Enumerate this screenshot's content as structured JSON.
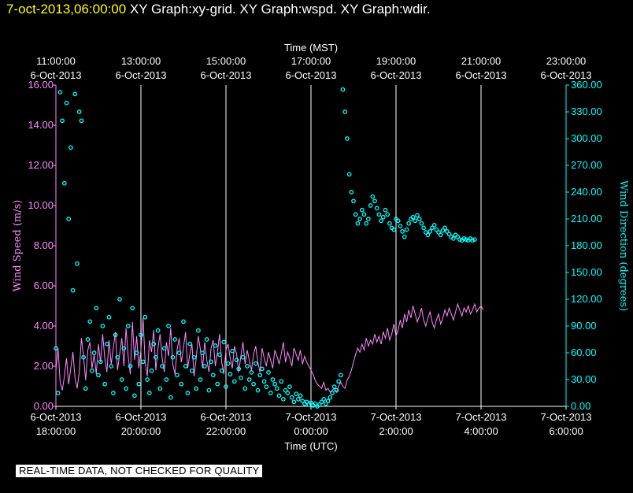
{
  "header": {
    "date": "7-oct-2013,06:00:00",
    "graphs": "  XY Graph:xy-grid.  XY Graph:wspd.  XY Graph:wdir."
  },
  "footer": {
    "disclaimer": "REAL-TIME DATA, NOT CHECKED FOR QUALITY"
  },
  "colors": {
    "background": "#000000",
    "wspd": "#ff88ff",
    "wdir": "#00ffff",
    "grid": "#ffffff",
    "title_date": "#ffff00"
  },
  "chart_data": {
    "type": "line",
    "top_axis": {
      "label": "Time (MST)",
      "ticks": [
        {
          "t": 0,
          "time": "11:00:00",
          "date": "6-Oct-2013"
        },
        {
          "t": 2,
          "time": "13:00:00",
          "date": "6-Oct-2013"
        },
        {
          "t": 4,
          "time": "15:00:00",
          "date": "6-Oct-2013"
        },
        {
          "t": 6,
          "time": "17:00:00",
          "date": "6-Oct-2013"
        },
        {
          "t": 8,
          "time": "19:00:00",
          "date": "6-Oct-2013"
        },
        {
          "t": 10,
          "time": "21:00:00",
          "date": "6-Oct-2013"
        },
        {
          "t": 12,
          "time": "23:00:00",
          "date": "6-Oct-2013"
        }
      ]
    },
    "bottom_axis": {
      "label": "Time (UTC)",
      "ticks": [
        {
          "t": 0,
          "date": "6-Oct-2013",
          "time": "18:00:00"
        },
        {
          "t": 2,
          "date": "6-Oct-2013",
          "time": "20:00:00"
        },
        {
          "t": 4,
          "date": "6-Oct-2013",
          "time": "22:00:00"
        },
        {
          "t": 6,
          "date": "7-Oct-2013",
          "time": "0:00:00"
        },
        {
          "t": 8,
          "date": "7-Oct-2013",
          "time": "2:00:00"
        },
        {
          "t": 10,
          "date": "7-Oct-2013",
          "time": "4:00:00"
        },
        {
          "t": 12,
          "date": "7-Oct-2013",
          "time": "6:00:00"
        }
      ]
    },
    "x_range_hours": [
      0,
      12
    ],
    "vertical_grid_hours": [
      2,
      4,
      6,
      8,
      10,
      12
    ],
    "left_axis": {
      "label": "Wind Speed (m/s)",
      "range": [
        0,
        16
      ],
      "ticks": [
        "0.00",
        "2.00",
        "4.00",
        "6.00",
        "8.00",
        "10.00",
        "12.00",
        "14.00",
        "16.00"
      ]
    },
    "right_axis": {
      "label": "Wind Direction (degrees)",
      "range": [
        0,
        360
      ],
      "ticks": [
        "0.00",
        "30.00",
        "60.00",
        "90.00",
        "120.00",
        "150.00",
        "180.00",
        "210.00",
        "240.00",
        "270.00",
        "300.00",
        "330.00",
        "360.00"
      ]
    },
    "series": [
      {
        "name": "wspd",
        "units": "m/s",
        "step_hours": 0.05,
        "values": [
          1.8,
          2.9,
          1.2,
          0.8,
          1.5,
          2.4,
          1.1,
          1.9,
          2.7,
          1.4,
          0.9,
          1.7,
          3.4,
          2.5,
          1.3,
          2.8,
          3.2,
          1.9,
          2.6,
          1.6,
          3.1,
          2.2,
          3.6,
          2.4,
          1.7,
          3.3,
          2.1,
          2.9,
          3.7,
          1.8,
          2.6,
          3.4,
          2.0,
          3.9,
          2.5,
          1.6,
          4.2,
          2.3,
          3.5,
          1.9,
          2.8,
          4.4,
          2.2,
          1.5,
          3.3,
          2.7,
          3.8,
          1.8,
          2.9,
          3.6,
          2.4,
          1.7,
          3.2,
          2.5,
          3.9,
          2.1,
          1.6,
          2.8,
          3.4,
          2.2,
          2.9,
          3.7,
          1.9,
          2.6,
          3.1,
          1.5,
          2.4,
          3.5,
          2.8,
          1.9,
          3.2,
          2.3,
          1.7,
          2.9,
          3.3,
          2.0,
          2.7,
          3.6,
          2.2,
          1.6,
          2.8,
          3.1,
          2.4,
          1.9,
          3.0,
          2.6,
          1.7,
          2.5,
          3.2,
          2.1,
          2.8,
          2.3,
          1.8,
          2.6,
          3.0,
          2.2,
          1.7,
          2.9,
          2.4,
          2.0,
          2.7,
          2.3,
          1.9,
          2.8,
          2.5,
          2.1,
          2.6,
          3.2,
          2.2,
          2.7,
          2.4,
          2.0,
          2.9,
          2.6,
          2.3,
          2.8,
          2.1,
          2.5,
          2.2,
          2.0,
          1.8,
          1.6,
          1.3,
          1.1,
          1.0,
          0.9,
          1.2,
          0.8,
          0.9,
          0.7,
          0.8,
          0.9,
          0.7,
          1.0,
          1.2,
          1.0,
          0.9,
          1.3,
          1.5,
          1.8,
          2.2,
          2.6,
          2.9,
          2.7,
          3.1,
          2.8,
          3.4,
          3.0,
          3.3,
          3.1,
          3.6,
          3.2,
          3.5,
          3.1,
          3.7,
          3.4,
          3.9,
          3.3,
          3.6,
          4.1,
          3.5,
          3.8,
          4.3,
          3.9,
          4.6,
          4.2,
          4.8,
          4.4,
          5.0,
          4.6,
          4.2,
          4.5,
          4.9,
          4.3,
          4.0,
          4.4,
          4.7,
          4.2,
          3.9,
          4.3,
          4.6,
          4.1,
          4.4,
          4.8,
          4.5,
          4.9,
          4.6,
          4.3,
          4.7,
          5.1,
          4.8,
          4.5,
          4.9,
          4.7,
          5.0,
          4.6,
          4.8,
          5.1,
          4.7,
          4.9,
          5.0,
          4.8
        ]
      },
      {
        "name": "wdir",
        "units": "degrees",
        "step_hours": 0.05,
        "values": [
          65,
          15,
          352,
          320,
          250,
          340,
          210,
          290,
          130,
          350,
          160,
          330,
          320,
          55,
          20,
          75,
          95,
          40,
          60,
          110,
          35,
          50,
          90,
          25,
          70,
          100,
          45,
          15,
          80,
          55,
          120,
          30,
          65,
          20,
          90,
          45,
          110,
          12,
          60,
          25,
          80,
          50,
          100,
          30,
          15,
          40,
          70,
          55,
          85,
          20,
          45,
          65,
          30,
          90,
          10,
          55,
          75,
          35,
          60,
          25,
          95,
          45,
          15,
          70,
          40,
          55,
          20,
          85,
          30,
          60,
          45,
          75,
          18,
          50,
          35,
          68,
          25,
          58,
          40,
          72,
          22,
          48,
          36,
          62,
          28,
          52,
          42,
          32,
          55,
          20,
          45,
          30,
          38,
          25,
          48,
          18,
          35,
          42,
          28,
          22,
          38,
          15,
          30,
          25,
          20,
          12,
          28,
          8,
          18,
          15,
          22,
          10,
          5,
          14,
          8,
          12,
          6,
          3,
          5,
          2,
          4,
          1,
          3,
          0,
          2,
          5,
          8,
          3,
          6,
          10,
          15,
          22,
          18,
          28,
          35,
          355,
          330,
          300,
          260,
          240,
          230,
          215,
          205,
          210,
          220,
          215,
          205,
          210,
          225,
          235,
          230,
          222,
          215,
          208,
          212,
          220,
          215,
          205,
          200,
          198,
          210,
          208,
          202,
          196,
          190,
          198,
          205,
          210,
          212,
          208,
          214,
          210,
          205,
          200,
          195,
          192,
          196,
          200,
          203,
          198,
          195,
          192,
          197,
          200,
          196,
          193,
          190,
          188,
          192,
          190,
          187,
          186,
          188,
          187,
          186,
          188,
          186,
          187
        ]
      }
    ]
  }
}
